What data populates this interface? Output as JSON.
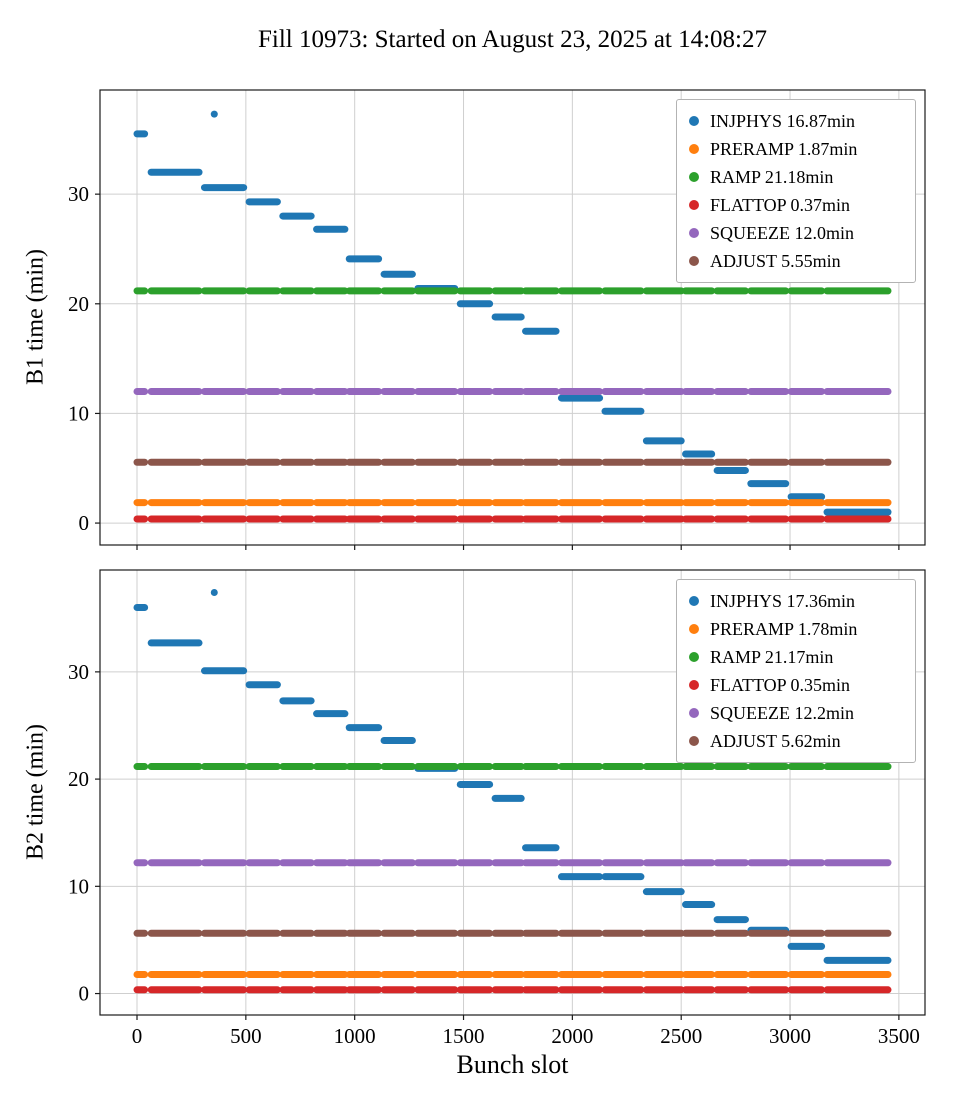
{
  "title": "Fill 10973: Started on August 23, 2025 at 14:08:27",
  "chart_data": [
    {
      "type": "scatter",
      "ylabel": "B1 time (min)",
      "xlabel": "Bunch slot",
      "xlim": [
        -170,
        3620
      ],
      "ylim": [
        -2,
        39.5
      ],
      "xticks": [
        0,
        500,
        1000,
        1500,
        2000,
        2500,
        3000,
        3500
      ],
      "yticks": [
        0,
        10,
        20,
        30
      ],
      "grid": true,
      "legend_position": "upper right",
      "trains": [
        [
          0,
          35
        ],
        [
          65,
          285
        ],
        [
          310,
          490
        ],
        [
          515,
          645
        ],
        [
          670,
          800
        ],
        [
          825,
          955
        ],
        [
          975,
          1110
        ],
        [
          1135,
          1265
        ],
        [
          1290,
          1460
        ],
        [
          1485,
          1620
        ],
        [
          1645,
          1765
        ],
        [
          1785,
          1925
        ],
        [
          1950,
          2125
        ],
        [
          2150,
          2315
        ],
        [
          2340,
          2500
        ],
        [
          2520,
          2640
        ],
        [
          2665,
          2795
        ],
        [
          2820,
          2980
        ],
        [
          3005,
          3145
        ],
        [
          3170,
          3450
        ]
      ],
      "series": [
        {
          "name": "INJPHYS",
          "legend": "INJPHYS 16.87min",
          "color": "#1f77b4",
          "mode": "per_train",
          "values": [
            35.5,
            32.0,
            30.6,
            29.3,
            28.0,
            26.8,
            24.1,
            22.7,
            21.4,
            20.0,
            18.8,
            17.5,
            11.4,
            10.2,
            7.5,
            6.3,
            4.8,
            3.6,
            2.4,
            1.0
          ],
          "extra_points": [
            {
              "x": 355,
              "y": 37.3
            }
          ]
        },
        {
          "name": "PRERAMP",
          "legend": "PRERAMP 1.87min",
          "color": "#ff7f0e",
          "mode": "flat",
          "value": 1.87
        },
        {
          "name": "RAMP",
          "legend": "RAMP 21.18min",
          "color": "#2ca02c",
          "mode": "flat",
          "value": 21.18
        },
        {
          "name": "FLATTOP",
          "legend": "FLATTOP 0.37min",
          "color": "#d62728",
          "mode": "flat",
          "value": 0.37
        },
        {
          "name": "SQUEEZE",
          "legend": "SQUEEZE 12.0min",
          "color": "#9467bd",
          "mode": "flat",
          "value": 12.0
        },
        {
          "name": "ADJUST",
          "legend": "ADJUST 5.55min",
          "color": "#8c564b",
          "mode": "flat",
          "value": 5.55
        }
      ]
    },
    {
      "type": "scatter",
      "ylabel": "B2 time (min)",
      "xlabel": "Bunch slot",
      "xlim": [
        -170,
        3620
      ],
      "ylim": [
        -2,
        39.5
      ],
      "xticks": [
        0,
        500,
        1000,
        1500,
        2000,
        2500,
        3000,
        3500
      ],
      "yticks": [
        0,
        10,
        20,
        30
      ],
      "grid": true,
      "legend_position": "upper right",
      "trains": [
        [
          0,
          35
        ],
        [
          65,
          285
        ],
        [
          310,
          490
        ],
        [
          515,
          645
        ],
        [
          670,
          800
        ],
        [
          825,
          955
        ],
        [
          975,
          1110
        ],
        [
          1135,
          1265
        ],
        [
          1290,
          1460
        ],
        [
          1485,
          1620
        ],
        [
          1645,
          1765
        ],
        [
          1785,
          1925
        ],
        [
          1950,
          2125
        ],
        [
          2150,
          2315
        ],
        [
          2340,
          2500
        ],
        [
          2520,
          2640
        ],
        [
          2665,
          2795
        ],
        [
          2820,
          2980
        ],
        [
          3005,
          3145
        ],
        [
          3170,
          3450
        ]
      ],
      "series": [
        {
          "name": "INJPHYS",
          "legend": "INJPHYS 17.36min",
          "color": "#1f77b4",
          "mode": "per_train",
          "values": [
            36.0,
            32.7,
            30.1,
            28.8,
            27.3,
            26.1,
            24.8,
            23.6,
            21.0,
            19.5,
            18.2,
            13.6,
            10.9,
            10.9,
            9.5,
            8.3,
            6.9,
            5.9,
            4.4,
            3.1
          ],
          "extra_points": [
            {
              "x": 355,
              "y": 37.4
            }
          ]
        },
        {
          "name": "PRERAMP",
          "legend": "PRERAMP 1.78min",
          "color": "#ff7f0e",
          "mode": "flat",
          "value": 1.78
        },
        {
          "name": "RAMP",
          "legend": "RAMP 21.17min",
          "color": "#2ca02c",
          "mode": "flat",
          "value": 21.17
        },
        {
          "name": "FLATTOP",
          "legend": "FLATTOP 0.35min",
          "color": "#d62728",
          "mode": "flat",
          "value": 0.35
        },
        {
          "name": "SQUEEZE",
          "legend": "SQUEEZE 12.2min",
          "color": "#9467bd",
          "mode": "flat",
          "value": 12.2
        },
        {
          "name": "ADJUST",
          "legend": "ADJUST 5.62min",
          "color": "#8c564b",
          "mode": "flat",
          "value": 5.62
        }
      ]
    }
  ]
}
